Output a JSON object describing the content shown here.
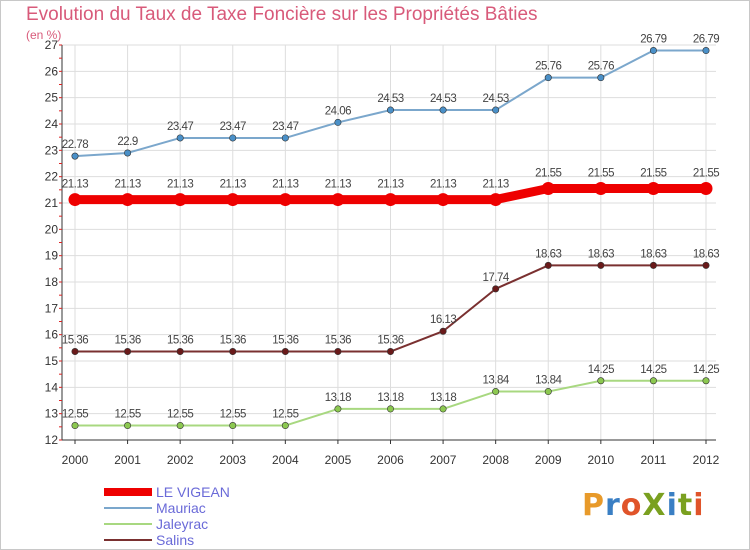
{
  "title": "Evolution du Taux de Taxe Foncière sur les Propriétés Bâties",
  "unit_label": "(en %)",
  "logo": {
    "text": "ProXiti",
    "colors": [
      "#e89a2a",
      "#3a7fc4",
      "#e0542a",
      "#7aa020",
      "#3a7fc4",
      "#7aa020",
      "#e0542a"
    ]
  },
  "chart_data": {
    "type": "line",
    "title": "Evolution du Taux de Taxe Foncière sur les Propriétés Bâties",
    "ylabel": "(en %)",
    "categories": [
      "2000",
      "2001",
      "2002",
      "2003",
      "2004",
      "2005",
      "2006",
      "2007",
      "2008",
      "2009",
      "2010",
      "2011",
      "2012"
    ],
    "ylim": [
      12,
      27
    ],
    "yticks": [
      12,
      13,
      14,
      15,
      16,
      17,
      18,
      19,
      20,
      21,
      22,
      23,
      24,
      25,
      26,
      27
    ],
    "grid": true,
    "legend_position": "bottom-left",
    "series": [
      {
        "name": "Mauriac",
        "color": "#7ba7cc",
        "marker_color": "#4a90c8",
        "values": [
          22.78,
          22.9,
          23.47,
          23.47,
          23.47,
          24.06,
          24.53,
          24.53,
          24.53,
          25.76,
          25.76,
          26.79,
          26.79
        ],
        "labels": [
          "22.78",
          "22.9",
          "23.47",
          "23.47",
          "23.47",
          "24.06",
          "24.53",
          "24.53",
          "24.53",
          "25.76",
          "25.76",
          "26.79",
          "26.79"
        ]
      },
      {
        "name": "LE VIGEAN",
        "color": "#ee0000",
        "marker_color": "#ee0000",
        "values": [
          21.13,
          21.13,
          21.13,
          21.13,
          21.13,
          21.13,
          21.13,
          21.13,
          21.13,
          21.55,
          21.55,
          21.55,
          21.55
        ],
        "labels": [
          "21.13",
          "21.13",
          "21.13",
          "21.13",
          "21.13",
          "21.13",
          "21.13",
          "21.13",
          "21.13",
          "21.55",
          "21.55",
          "21.55",
          "21.55"
        ]
      },
      {
        "name": "Salins",
        "color": "#7a3030",
        "marker_color": "#6a1a1a",
        "values": [
          15.36,
          15.36,
          15.36,
          15.36,
          15.36,
          15.36,
          15.36,
          16.13,
          17.74,
          18.63,
          18.63,
          18.63,
          18.63
        ],
        "labels": [
          "15.36",
          "15.36",
          "15.36",
          "15.36",
          "15.36",
          "15.36",
          "15.36",
          "16.13",
          "17.74",
          "18.63",
          "18.63",
          "18.63",
          "18.63"
        ]
      },
      {
        "name": "Jaleyrac",
        "color": "#a8d880",
        "marker_color": "#8cc850",
        "values": [
          12.55,
          12.55,
          12.55,
          12.55,
          12.55,
          13.18,
          13.18,
          13.18,
          13.84,
          13.84,
          14.25,
          14.25,
          14.25
        ],
        "labels": [
          "12.55",
          "12.55",
          "12.55",
          "12.55",
          "12.55",
          "13.18",
          "13.18",
          "13.18",
          "13.84",
          "13.84",
          "14.25",
          "14.25",
          "14.25"
        ]
      }
    ],
    "legend": [
      "LE VIGEAN",
      "Mauriac",
      "Jaleyrac",
      "Salins"
    ]
  }
}
